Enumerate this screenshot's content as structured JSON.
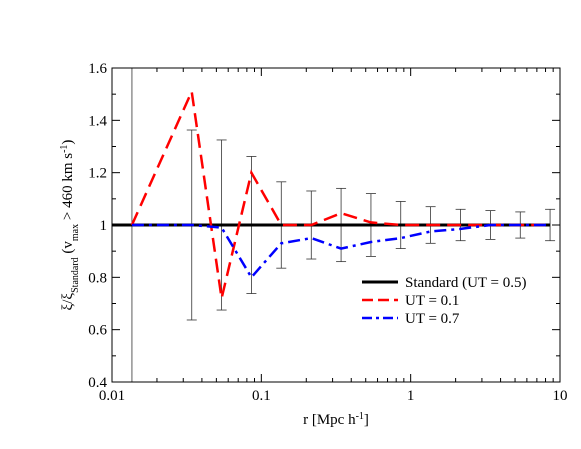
{
  "chart_data": {
    "type": "line",
    "x_scale": "log",
    "xlim": [
      0.01,
      10
    ],
    "ylim": [
      0.4,
      1.6
    ],
    "xticks": [
      {
        "value": 0.01,
        "label": "0.01"
      },
      {
        "value": 0.1,
        "label": "0.1"
      },
      {
        "value": 1,
        "label": "1"
      },
      {
        "value": 10,
        "label": "10"
      }
    ],
    "yticks": [
      {
        "value": 0.4,
        "label": "0.4"
      },
      {
        "value": 0.6,
        "label": "0.6"
      },
      {
        "value": 0.8,
        "label": "0.8"
      },
      {
        "value": 1.0,
        "label": "1"
      },
      {
        "value": 1.2,
        "label": "1.2"
      },
      {
        "value": 1.4,
        "label": "1.4"
      },
      {
        "value": 1.6,
        "label": "1.6"
      }
    ],
    "xlabel": {
      "main": "r [Mpc h",
      "sup": "-1",
      "tail": "]"
    },
    "ylabel": {
      "xi": "ξ",
      "slash": "/",
      "xi2": "ξ",
      "sub": "Standard",
      "paren": " (v",
      "sub2": "max",
      "rest": " > 460 km s",
      "sup": "-1",
      "close": ")"
    },
    "legend_position": "lower-right",
    "errorbars": {
      "center": 1.0,
      "points": [
        {
          "x": 0.0136,
          "half": 0.6
        },
        {
          "x": 0.0342,
          "half": 0.363
        },
        {
          "x": 0.0542,
          "half": 0.325
        },
        {
          "x": 0.0858,
          "half": 0.262
        },
        {
          "x": 0.136,
          "half": 0.165
        },
        {
          "x": 0.216,
          "half": 0.13
        },
        {
          "x": 0.342,
          "half": 0.14
        },
        {
          "x": 0.542,
          "half": 0.12
        },
        {
          "x": 0.858,
          "half": 0.09
        },
        {
          "x": 1.36,
          "half": 0.07
        },
        {
          "x": 2.16,
          "half": 0.06
        },
        {
          "x": 3.42,
          "half": 0.055
        },
        {
          "x": 5.42,
          "half": 0.05
        },
        {
          "x": 8.58,
          "half": 0.06
        }
      ]
    },
    "series": [
      {
        "name": "Standard (UT = 0.5)",
        "color": "#000000",
        "dash": "solid",
        "x": [
          0.01,
          0.0136,
          0.0342,
          0.0542,
          0.0858,
          0.136,
          0.216,
          0.342,
          0.542,
          0.858,
          1.36,
          2.16,
          3.42,
          5.42,
          8.58
        ],
        "y": [
          1,
          1,
          1,
          1,
          1,
          1,
          1,
          1,
          1,
          1,
          1,
          1,
          1,
          1,
          1
        ]
      },
      {
        "name": "UT = 0.1",
        "color": "#ff0000",
        "dash": "dashed",
        "x": [
          0.0136,
          0.0342,
          0.0542,
          0.0858,
          0.136,
          0.216,
          0.342,
          0.542,
          0.858,
          1.36,
          2.16,
          3.42,
          5.42,
          8.58
        ],
        "y": [
          1.0,
          1.51,
          0.72,
          1.2,
          1.0,
          1.0,
          1.045,
          1.01,
          1.0,
          1.0,
          1.0,
          1.0,
          1.0,
          1.0
        ]
      },
      {
        "name": "UT = 0.7",
        "color": "#0000ff",
        "dash": "dashdot",
        "x": [
          0.0136,
          0.0342,
          0.0542,
          0.0858,
          0.136,
          0.216,
          0.342,
          0.542,
          0.858,
          1.36,
          2.16,
          3.42,
          5.42,
          8.58
        ],
        "y": [
          1.0,
          1.0,
          0.99,
          0.8,
          0.93,
          0.95,
          0.91,
          0.935,
          0.95,
          0.975,
          0.985,
          1.0,
          1.0,
          1.0
        ]
      }
    ]
  }
}
